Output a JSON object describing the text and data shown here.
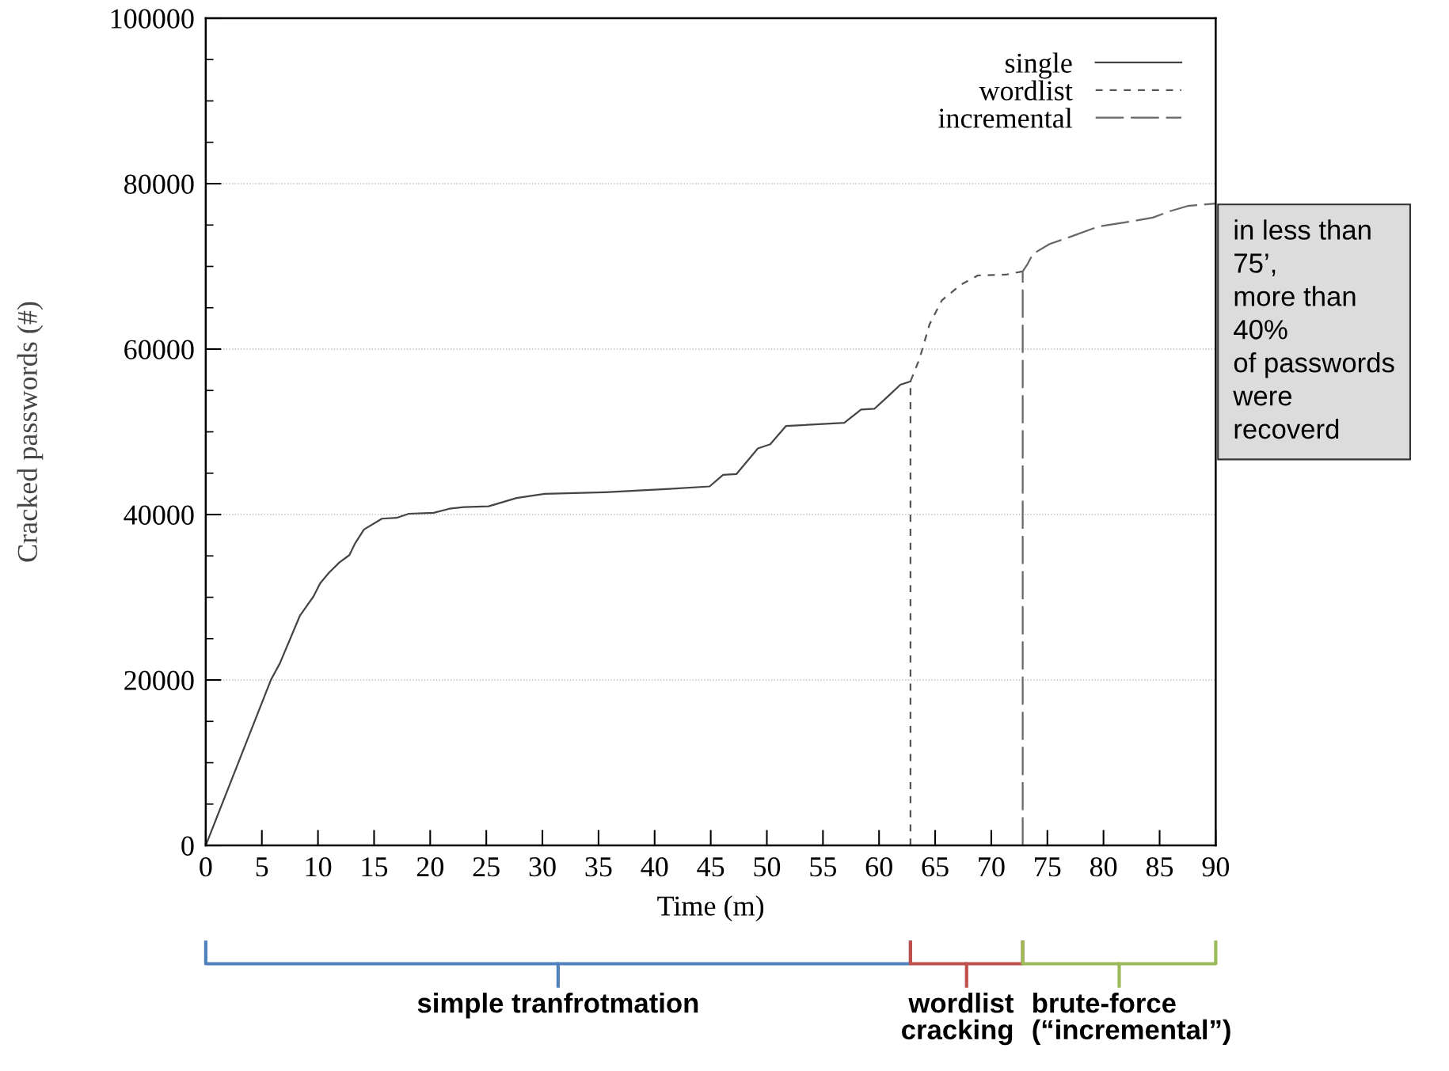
{
  "chart_data": {
    "type": "line",
    "xlabel": "Time (m)",
    "ylabel": "Cracked passwords (#)",
    "xlim": [
      0,
      90
    ],
    "ylim": [
      0,
      100000
    ],
    "xticks": [
      0,
      5,
      10,
      15,
      20,
      25,
      30,
      35,
      40,
      45,
      50,
      55,
      60,
      65,
      70,
      75,
      80,
      85,
      90
    ],
    "yticks": [
      0,
      20000,
      40000,
      60000,
      80000,
      100000
    ],
    "grid": "y",
    "legend": "top right",
    "series": [
      {
        "name": "single",
        "color": "#444444",
        "line_style": "solid",
        "x": [
          0,
          5.8,
          6.6,
          8.4,
          9.6,
          10.2,
          11.0,
          11.9,
          12.8,
          13.3,
          14.1,
          15.7,
          17.0,
          18.1,
          20.3,
          21.7,
          23.0,
          25.2,
          27.7,
          30.2,
          35.6,
          41.3,
          44.9,
          46.1,
          47.3,
          49.2,
          50.3,
          51.7,
          56.9,
          58.4,
          59.6,
          60.8,
          61.9,
          62.8
        ],
        "values": [
          0,
          20000,
          22000,
          27800,
          30100,
          31700,
          33000,
          34200,
          35100,
          36500,
          38200,
          39500,
          39600,
          40100,
          40200,
          40700,
          40900,
          41000,
          42000,
          42500,
          42700,
          43100,
          43400,
          44800,
          44900,
          48000,
          48500,
          50700,
          51100,
          52700,
          52800,
          54300,
          55700,
          56100
        ]
      },
      {
        "name": "wordlist",
        "color": "#555555",
        "line_style": "dashed",
        "x": [
          62.8,
          62.8,
          63.6,
          64.5,
          65.6,
          67.3,
          68.8,
          71.3,
          72.8
        ],
        "values": [
          0,
          56100,
          58800,
          63000,
          65900,
          67800,
          68900,
          69000,
          69400
        ]
      },
      {
        "name": "incremental",
        "color": "#666666",
        "line_style": "dashed",
        "x": [
          72.8,
          72.8,
          73.2,
          73.7,
          75.2,
          77.1,
          79.5,
          82.3,
          84.4,
          86.0,
          87.5,
          90
        ],
        "values": [
          0,
          69400,
          70200,
          71500,
          72700,
          73600,
          74800,
          75400,
          75900,
          76700,
          77300,
          77600
        ]
      }
    ],
    "annotations": [
      "simple tranfrotmation",
      "wordlist\ncracking",
      "brute-force\n(“incremental”)",
      "in less than\n75’,\nmore than\n40%\nof passwords\nwere\nrecoverd"
    ]
  }
}
